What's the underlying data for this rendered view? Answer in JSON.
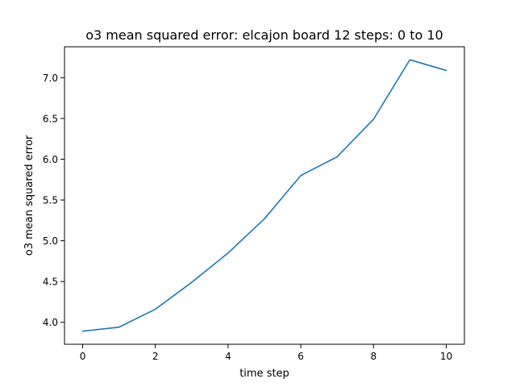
{
  "chart_data": {
    "type": "line",
    "title": "o3 mean squared error: elcajon board 12 steps: 0 to 10",
    "xlabel": "time step",
    "ylabel": "o3 mean squared error",
    "xlim": [
      -0.5,
      10.5
    ],
    "ylim": [
      3.73,
      7.38
    ],
    "xticks": [
      0,
      2,
      4,
      6,
      8,
      10
    ],
    "xtick_labels": [
      "0",
      "2",
      "4",
      "6",
      "8",
      "10"
    ],
    "yticks": [
      4.0,
      4.5,
      5.0,
      5.5,
      6.0,
      6.5,
      7.0
    ],
    "ytick_labels": [
      "4.0",
      "4.5",
      "5.0",
      "5.5",
      "6.0",
      "6.5",
      "7.0"
    ],
    "grid": false,
    "series": [
      {
        "color": "#1f77b4",
        "x": [
          0,
          1,
          2,
          3,
          4,
          5,
          6,
          7,
          8,
          9,
          10
        ],
        "values": [
          3.89,
          3.94,
          4.16,
          4.49,
          4.85,
          5.27,
          5.8,
          6.03,
          6.49,
          7.22,
          7.09
        ]
      }
    ]
  }
}
